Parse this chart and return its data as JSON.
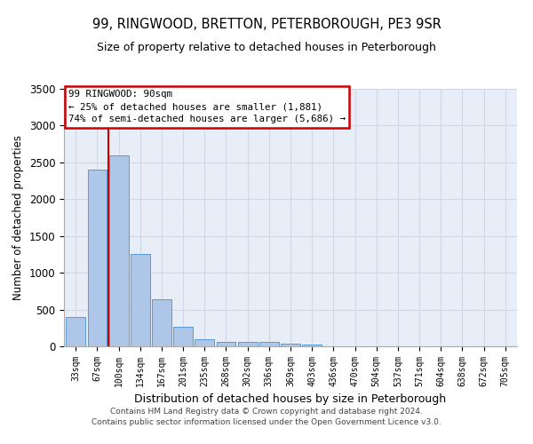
{
  "title": "99, RINGWOOD, BRETTON, PETERBOROUGH, PE3 9SR",
  "subtitle": "Size of property relative to detached houses in Peterborough",
  "xlabel": "Distribution of detached houses by size in Peterborough",
  "ylabel": "Number of detached properties",
  "categories": [
    "33sqm",
    "67sqm",
    "100sqm",
    "134sqm",
    "167sqm",
    "201sqm",
    "235sqm",
    "268sqm",
    "302sqm",
    "336sqm",
    "369sqm",
    "403sqm",
    "436sqm",
    "470sqm",
    "504sqm",
    "537sqm",
    "571sqm",
    "604sqm",
    "638sqm",
    "672sqm",
    "705sqm"
  ],
  "values": [
    400,
    2400,
    2600,
    1250,
    640,
    260,
    100,
    60,
    60,
    55,
    35,
    30,
    5,
    3,
    2,
    2,
    1,
    1,
    1,
    1,
    0
  ],
  "bar_color": "#aec6e8",
  "bar_edge_color": "#5b9bd5",
  "grid_color": "#d0d8e8",
  "background_color": "#e8eef8",
  "vline_color": "#cc0000",
  "annotation_text": "99 RINGWOOD: 90sqm\n← 25% of detached houses are smaller (1,881)\n74% of semi-detached houses are larger (5,686) →",
  "annotation_box_color": "#cc0000",
  "footer1": "Contains HM Land Registry data © Crown copyright and database right 2024.",
  "footer2": "Contains public sector information licensed under the Open Government Licence v3.0.",
  "ylim": [
    0,
    3500
  ],
  "yticks": [
    0,
    500,
    1000,
    1500,
    2000,
    2500,
    3000,
    3500
  ]
}
